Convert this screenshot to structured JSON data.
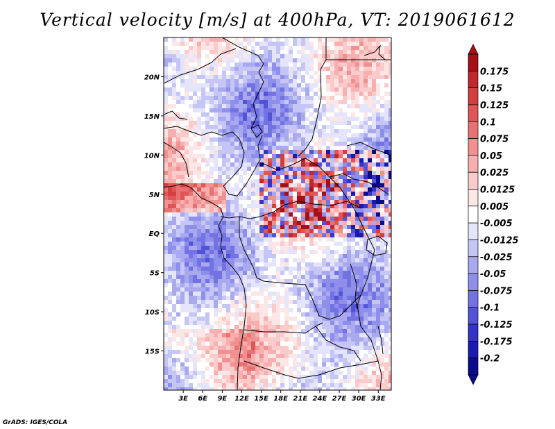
{
  "title": "Vertical velocity [m/s] at 400hPa, VT: 2019061612",
  "footer": "GrADS: IGES/COLA",
  "map": {
    "variable": "Vertical velocity",
    "units": "m/s",
    "level": "400hPa",
    "valid_time": "2019061612",
    "lon_range": [
      0,
      35
    ],
    "lat_range": [
      -20,
      25
    ],
    "x_ticks": [
      "3E",
      "6E",
      "9E",
      "12E",
      "15E",
      "18E",
      "21E",
      "24E",
      "27E",
      "30E",
      "33E"
    ],
    "x_tick_values": [
      3,
      6,
      9,
      12,
      15,
      18,
      21,
      24,
      27,
      30,
      33
    ],
    "y_ticks": [
      "20N",
      "15N",
      "10N",
      "5N",
      "EQ",
      "5S",
      "10S",
      "15S"
    ],
    "y_tick_values": [
      20,
      15,
      10,
      5,
      0,
      -5,
      -10,
      -15
    ]
  },
  "colorbar": {
    "labels": [
      "0.175",
      "0.15",
      "0.125",
      "0.1",
      "0.075",
      "0.05",
      "0.025",
      "0.0125",
      "0.005",
      "-0.005",
      "-0.0125",
      "-0.025",
      "-0.05",
      "-0.075",
      "-0.1",
      "-0.125",
      "-0.175",
      "-0.2"
    ],
    "colors": [
      "#a50f15",
      "#c0282d",
      "#d33f3f",
      "#e05555",
      "#e87272",
      "#f09090",
      "#f7afaf",
      "#fbcaca",
      "#fde6e6",
      "#ffffff",
      "#e4e4fb",
      "#c6c6f6",
      "#a9a9f0",
      "#8e8eeb",
      "#7272e3",
      "#5353d8",
      "#3333c8",
      "#1a1ab0",
      "#0b0b8a"
    ]
  }
}
